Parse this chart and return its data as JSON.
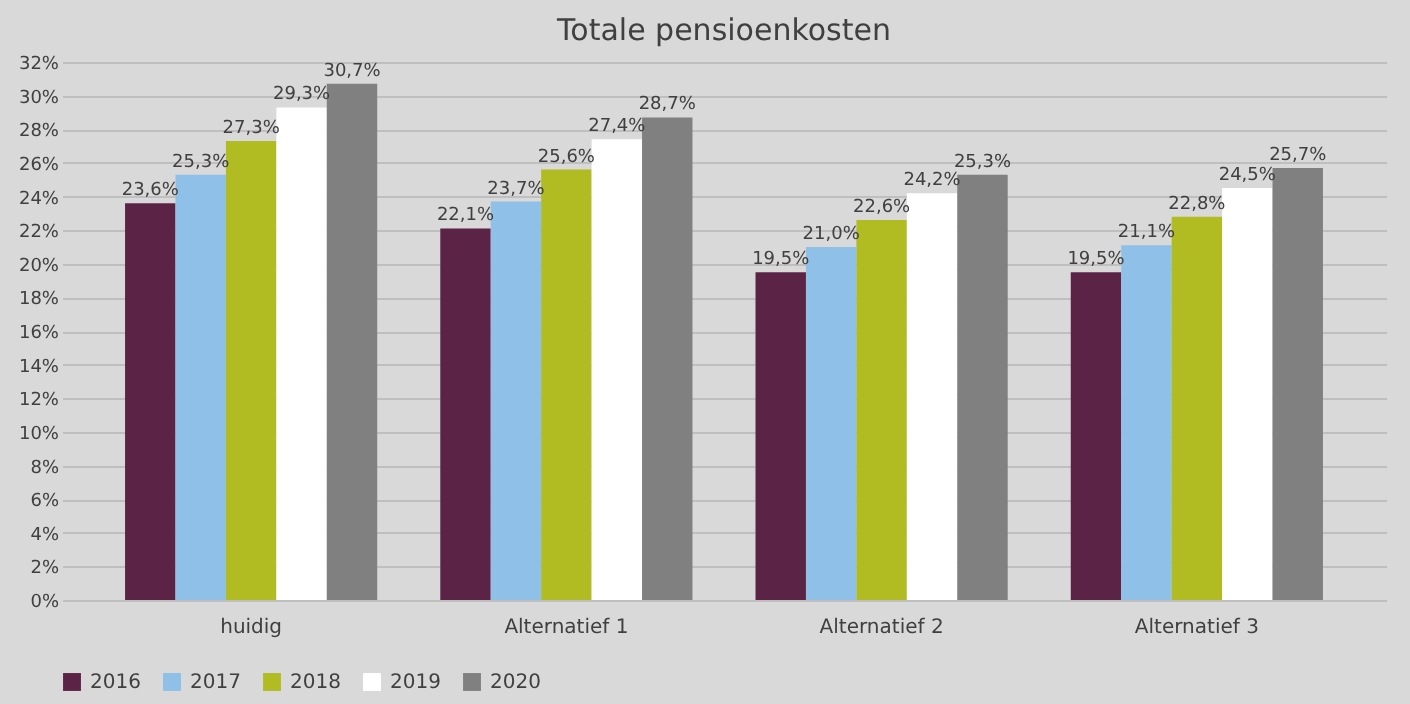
{
  "chart_data": {
    "type": "bar",
    "title": "Totale pensioenkosten",
    "categories": [
      "huidig",
      "Alternatief 1",
      "Alternatief 2",
      "Alternatief 3"
    ],
    "series": [
      {
        "name": "2016",
        "color": "#5b2346",
        "values": [
          23.6,
          22.1,
          19.5,
          19.5
        ],
        "value_labels": [
          "23,6%",
          "22,1%",
          "19,5%",
          "19,5%"
        ]
      },
      {
        "name": "2017",
        "color": "#8ec0e8",
        "values": [
          25.3,
          23.7,
          21.0,
          21.1
        ],
        "value_labels": [
          "25,3%",
          "23,7%",
          "21,0%",
          "21,1%"
        ]
      },
      {
        "name": "2018",
        "color": "#b0bc22",
        "values": [
          27.3,
          25.6,
          22.6,
          22.8
        ],
        "value_labels": [
          "27,3%",
          "25,6%",
          "22,6%",
          "22,8%"
        ]
      },
      {
        "name": "2019",
        "color": "#ffffff",
        "values": [
          29.3,
          27.4,
          24.2,
          24.5
        ],
        "value_labels": [
          "29,3%",
          "27,4%",
          "24,2%",
          "24,5%"
        ]
      },
      {
        "name": "2020",
        "color": "#808080",
        "values": [
          30.7,
          28.7,
          25.3,
          25.7
        ],
        "value_labels": [
          "30,7%",
          "28,7%",
          "25,3%",
          "25,7%"
        ]
      }
    ],
    "ylim": [
      0,
      32
    ],
    "yticks": [
      {
        "value": 0,
        "label": "0%"
      },
      {
        "value": 2,
        "label": "2%"
      },
      {
        "value": 4,
        "label": "4%"
      },
      {
        "value": 6,
        "label": "6%"
      },
      {
        "value": 8,
        "label": "8%"
      },
      {
        "value": 10,
        "label": "10%"
      },
      {
        "value": 12,
        "label": "12%"
      },
      {
        "value": 14,
        "label": "14%"
      },
      {
        "value": 16,
        "label": "16%"
      },
      {
        "value": 18,
        "label": "18%"
      },
      {
        "value": 20,
        "label": "20%"
      },
      {
        "value": 22,
        "label": "22%"
      },
      {
        "value": 24,
        "label": "24%"
      },
      {
        "value": 26,
        "label": "26%"
      },
      {
        "value": 28,
        "label": "28%"
      },
      {
        "value": 30,
        "label": "30%"
      },
      {
        "value": 32,
        "label": "32%"
      }
    ],
    "grid": "y",
    "legend": "bottom"
  }
}
